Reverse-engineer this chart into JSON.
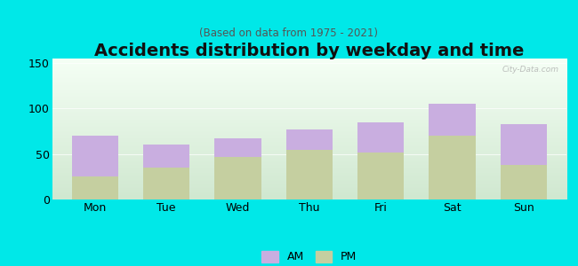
{
  "title": "Accidents distribution by weekday and time",
  "subtitle": "(Based on data from 1975 - 2021)",
  "categories": [
    "Mon",
    "Tue",
    "Wed",
    "Thu",
    "Fri",
    "Sat",
    "Sun"
  ],
  "pm_values": [
    25,
    35,
    47,
    55,
    52,
    70,
    38
  ],
  "am_values": [
    45,
    25,
    20,
    22,
    33,
    35,
    45
  ],
  "am_color": "#c9aee0",
  "pm_color": "#c5cfa0",
  "background_color": "#00e8e8",
  "grad_top_color": "#f5fff5",
  "grad_bot_color": "#d0e8d0",
  "yticks": [
    0,
    50,
    100,
    150
  ],
  "ylim": [
    0,
    155
  ],
  "bar_width": 0.65,
  "title_fontsize": 14,
  "subtitle_fontsize": 8.5,
  "tick_fontsize": 9,
  "legend_fontsize": 9,
  "watermark": "City-Data.com"
}
